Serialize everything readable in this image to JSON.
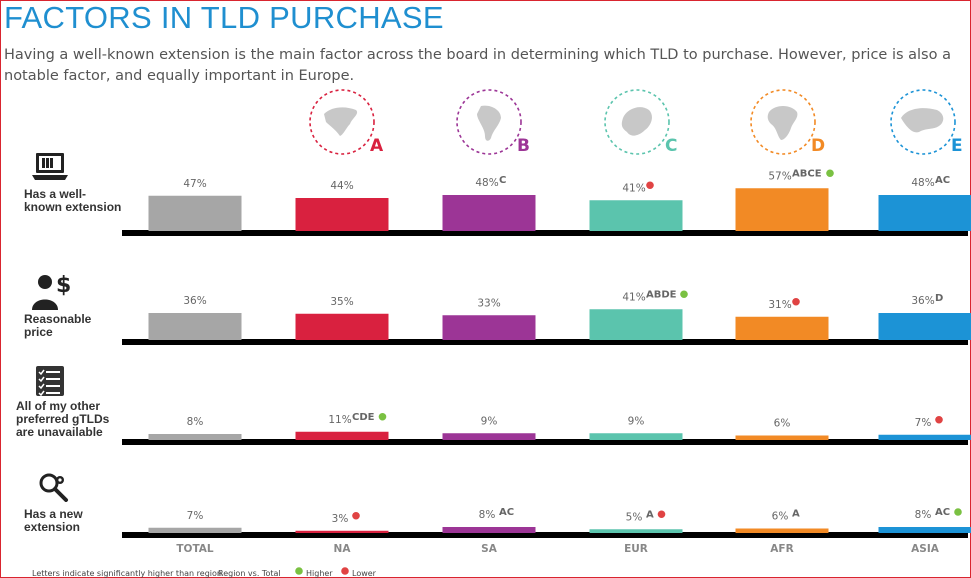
{
  "title": "FACTORS IN TLD PURCHASE",
  "subtitle": "Having a well-known extension is the main factor across the board in determining which TLD to purchase. However, price is also a notable factor, and equally important in Europe.",
  "footnote": {
    "text": "Letters indicate significantly higher than region",
    "region_label": "Region vs. Total",
    "higher_label": "Higher",
    "lower_label": "Lower"
  },
  "colors": {
    "TOTAL": "#a6a6a6",
    "NA": "#d9213f",
    "SA": "#9c3596",
    "EUR": "#5bc4ad",
    "AFR": "#f28a25",
    "ASIA": "#1c93d6",
    "higher": "#7ac142",
    "lower": "#e04343"
  },
  "regions": [
    {
      "code": "NA",
      "letter": "A",
      "map": "north-america-map-icon"
    },
    {
      "code": "SA",
      "letter": "B",
      "map": "south-america-map-icon"
    },
    {
      "code": "EUR",
      "letter": "C",
      "map": "europe-map-icon"
    },
    {
      "code": "AFR",
      "letter": "D",
      "map": "africa-map-icon"
    },
    {
      "code": "ASIA",
      "letter": "E",
      "map": "asia-map-icon"
    }
  ],
  "rows": [
    {
      "label": "Has a well-known extension",
      "icon": "laptop-icon"
    },
    {
      "label": "Reasonable price",
      "icon": "person-dollar-icon"
    },
    {
      "label": "All of my other preferred gTLDs are unavailable",
      "icon": "checklist-icon"
    },
    {
      "label": "Has a new extension",
      "icon": "magnifier-gear-icon"
    }
  ],
  "chart_data": {
    "type": "bar",
    "categories": [
      "TOTAL",
      "NA",
      "SA",
      "EUR",
      "AFR",
      "ASIA"
    ],
    "rows": [
      {
        "label": "Has a well-known extension",
        "values": [
          47,
          44,
          48,
          41,
          57,
          48
        ],
        "value_labels": [
          "47%",
          "44%",
          "48%",
          "41%",
          "57%",
          "48%"
        ],
        "significance": [
          "",
          "",
          "C",
          "",
          "ABCE",
          "AC"
        ],
        "vs_total": [
          "",
          "",
          "",
          "lower",
          "higher",
          ""
        ]
      },
      {
        "label": "Reasonable price",
        "values": [
          36,
          35,
          33,
          41,
          31,
          36
        ],
        "value_labels": [
          "36%",
          "35%",
          "33%",
          "41%",
          "31%",
          "36%"
        ],
        "significance": [
          "",
          "",
          "",
          "ABDE",
          "",
          "D"
        ],
        "vs_total": [
          "",
          "",
          "",
          "higher",
          "lower",
          ""
        ]
      },
      {
        "label": "All of my other preferred gTLDs are unavailable",
        "values": [
          8,
          11,
          9,
          9,
          6,
          7
        ],
        "value_labels": [
          "8%",
          "11%",
          "9%",
          "9%",
          "6%",
          "7%"
        ],
        "significance": [
          "",
          "CDE",
          "",
          "",
          "",
          ""
        ],
        "vs_total": [
          "",
          "higher",
          "",
          "",
          "",
          "lower"
        ]
      },
      {
        "label": "Has a new extension",
        "values": [
          7,
          3,
          8,
          5,
          6,
          8
        ],
        "value_labels": [
          "7%",
          "3%",
          "8%",
          "5%",
          "6%",
          "8%"
        ],
        "significance": [
          "",
          "",
          "AC",
          "A",
          "A",
          "AC"
        ],
        "vs_total": [
          "",
          "lower",
          "",
          "lower",
          "",
          "higher"
        ]
      }
    ],
    "ylim": [
      0,
      100
    ],
    "grid": false,
    "legend": "bottom"
  }
}
